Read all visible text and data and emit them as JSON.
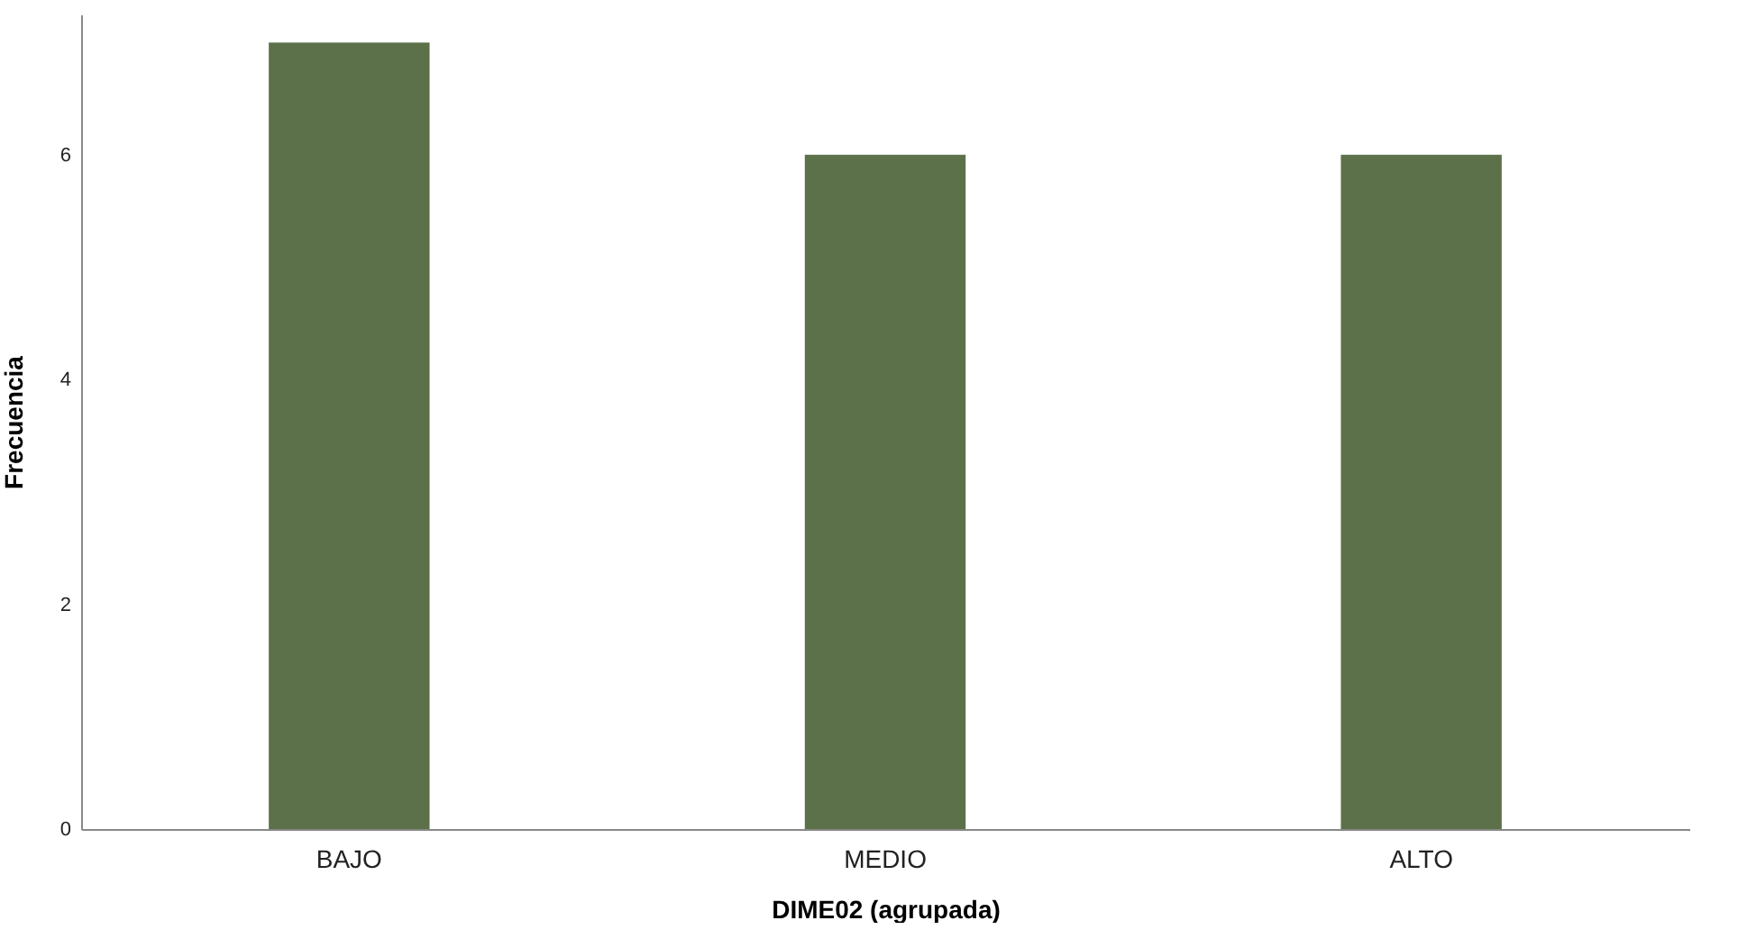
{
  "chart_data": {
    "type": "bar",
    "xlabel": "DIME02 (agrupada)",
    "ylabel": "Frecuencia",
    "categories": [
      "BAJO",
      "MEDIO",
      "ALTO"
    ],
    "values": [
      7,
      6,
      6
    ],
    "color": "#5c704a",
    "ylim": [
      0,
      7.25
    ],
    "yticks": [
      0,
      2,
      4,
      6
    ],
    "grid": false
  }
}
